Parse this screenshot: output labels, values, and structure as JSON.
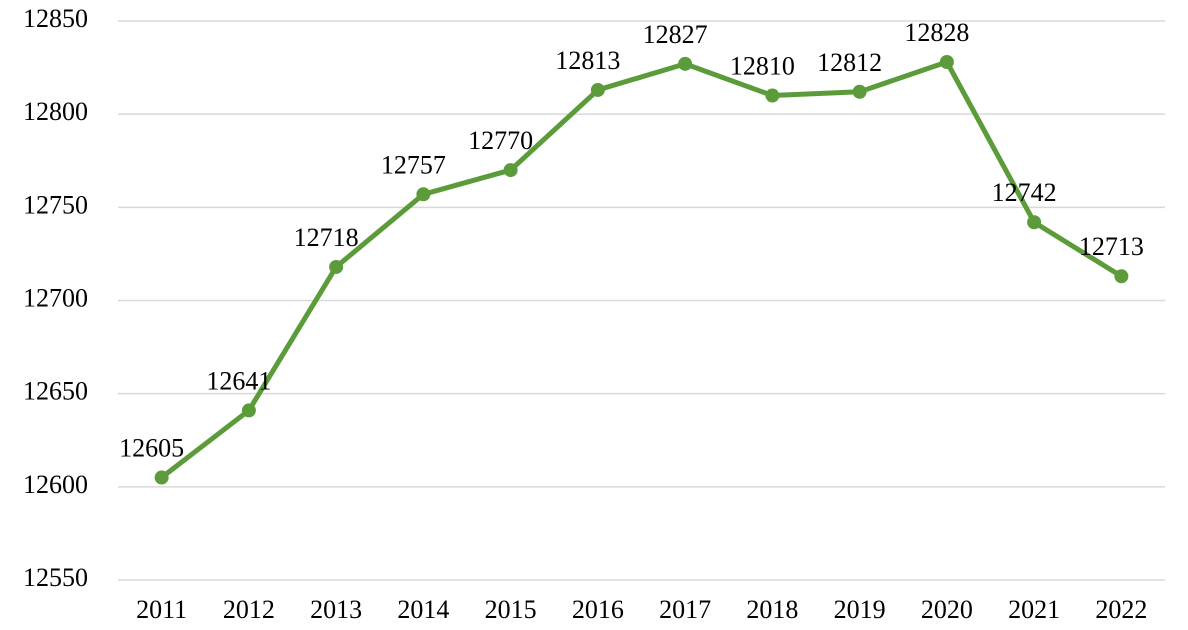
{
  "chart_data": {
    "type": "line",
    "categories": [
      "2011",
      "2012",
      "2013",
      "2014",
      "2015",
      "2016",
      "2017",
      "2018",
      "2019",
      "2020",
      "2021",
      "2022"
    ],
    "series": [
      {
        "color": "#5b9b3a",
        "values": [
          12605,
          12641,
          12718,
          12757,
          12770,
          12813,
          12827,
          12810,
          12812,
          12828,
          12742,
          12713
        ]
      }
    ],
    "ylim": [
      12550,
      12850
    ],
    "yticks": [
      12550,
      12600,
      12650,
      12700,
      12750,
      12800,
      12850
    ],
    "grid": true,
    "data_labels": true
  }
}
